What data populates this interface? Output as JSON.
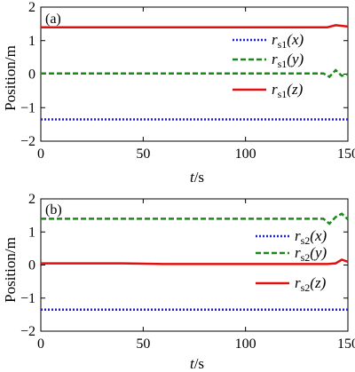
{
  "chart_data": [
    {
      "type": "line",
      "panel_label": "(a)",
      "xlabel_var": "t",
      "xlabel_unit": "/s",
      "ylabel": "Position/m",
      "xlim": [
        0,
        150
      ],
      "ylim": [
        -2,
        2
      ],
      "xticks": [
        0,
        50,
        100,
        150
      ],
      "yticks": [
        -2,
        -1,
        0,
        1,
        2
      ],
      "ytick_labels": [
        "−2",
        "−1",
        "0",
        "1",
        "2"
      ],
      "legend": "right",
      "series": [
        {
          "name_main": "r",
          "name_sub": "s1",
          "name_arg": "(x)",
          "color": "#1f1fd6",
          "dash": "dotted",
          "x": [
            0,
            50,
            100,
            150
          ],
          "y": [
            -1.35,
            -1.35,
            -1.35,
            -1.35
          ]
        },
        {
          "name_main": "r",
          "name_sub": "s1",
          "name_arg": "(y)",
          "color": "#1a8a1a",
          "dash": "dashed",
          "x": [
            0,
            10,
            20,
            30,
            40,
            50,
            60,
            70,
            80,
            90,
            100,
            110,
            120,
            130,
            138,
            141,
            144,
            147,
            150
          ],
          "y": [
            0.02,
            0.02,
            0.02,
            0.02,
            0.02,
            0.02,
            0.02,
            0.02,
            0.02,
            0.02,
            0.02,
            0.02,
            0.02,
            0.02,
            0.02,
            -0.08,
            0.12,
            -0.05,
            0.0
          ]
        },
        {
          "name_main": "r",
          "name_sub": "s1",
          "name_arg": "(z)",
          "color": "#e01010",
          "dash": "solid",
          "x": [
            0,
            10,
            20,
            30,
            40,
            50,
            60,
            70,
            80,
            90,
            100,
            110,
            120,
            130,
            140,
            144,
            147,
            150
          ],
          "y": [
            1.4,
            1.4,
            1.4,
            1.4,
            1.4,
            1.4,
            1.4,
            1.4,
            1.4,
            1.4,
            1.4,
            1.4,
            1.4,
            1.4,
            1.4,
            1.46,
            1.44,
            1.42
          ]
        }
      ]
    },
    {
      "type": "line",
      "panel_label": "(b)",
      "xlabel_var": "t",
      "xlabel_unit": "/s",
      "ylabel": "Position/m",
      "xlim": [
        0,
        150
      ],
      "ylim": [
        -2,
        2
      ],
      "xticks": [
        0,
        50,
        100,
        150
      ],
      "yticks": [
        -2,
        -1,
        0,
        1,
        2
      ],
      "ytick_labels": [
        "−2",
        "−1",
        "0",
        "1",
        "2"
      ],
      "legend": "right",
      "series": [
        {
          "name_main": "r",
          "name_sub": "s2",
          "name_arg": "(x)",
          "color": "#1f1fd6",
          "dash": "dotted",
          "x": [
            0,
            50,
            100,
            150
          ],
          "y": [
            -1.35,
            -1.35,
            -1.35,
            -1.35
          ]
        },
        {
          "name_main": "r",
          "name_sub": "s2",
          "name_arg": "(y)",
          "color": "#1a8a1a",
          "dash": "dashed",
          "x": [
            0,
            20,
            40,
            60,
            80,
            100,
            120,
            138,
            141,
            144,
            147,
            150
          ],
          "y": [
            1.4,
            1.4,
            1.4,
            1.4,
            1.4,
            1.4,
            1.4,
            1.4,
            1.25,
            1.45,
            1.55,
            1.38
          ]
        },
        {
          "name_main": "r",
          "name_sub": "s2",
          "name_arg": "(z)",
          "color": "#e01010",
          "dash": "solid",
          "x": [
            0,
            20,
            40,
            60,
            80,
            100,
            120,
            140,
            144,
            147,
            150
          ],
          "y": [
            0.05,
            0.05,
            0.05,
            0.03,
            0.03,
            0.03,
            0.03,
            0.03,
            0.05,
            0.16,
            0.1
          ]
        }
      ]
    }
  ]
}
